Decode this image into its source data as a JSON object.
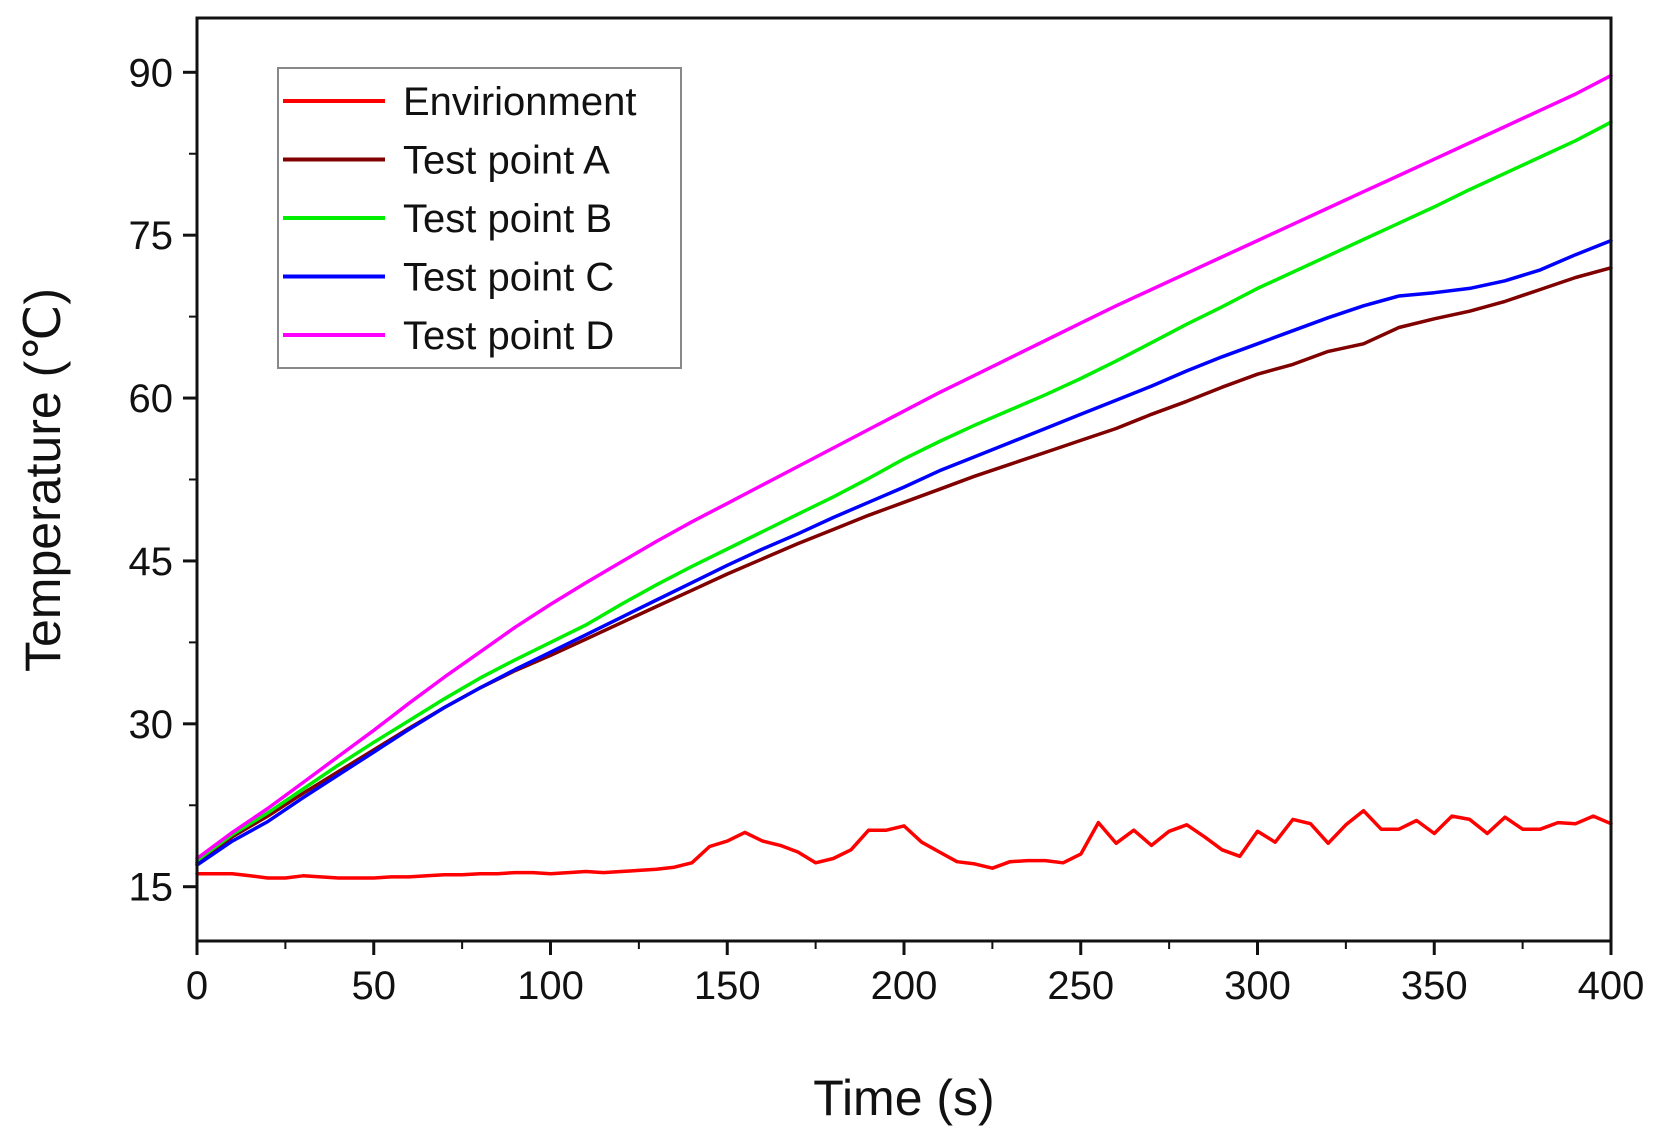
{
  "chart_data": {
    "type": "line",
    "title": "",
    "xlabel": "Time (s)",
    "ylabel": "Temperature (℃)",
    "xlim": [
      0,
      400
    ],
    "ylim": [
      10,
      95
    ],
    "xticks": [
      0,
      50,
      100,
      150,
      200,
      250,
      300,
      350,
      400
    ],
    "yticks": [
      15,
      30,
      45,
      60,
      75,
      90
    ],
    "grid": false,
    "legend_position": "top-left",
    "series": [
      {
        "name": "Envirionment",
        "color": "#ff0000",
        "x": [
          0,
          5,
          10,
          15,
          20,
          25,
          30,
          35,
          40,
          45,
          50,
          55,
          60,
          65,
          70,
          75,
          80,
          85,
          90,
          95,
          100,
          105,
          110,
          115,
          120,
          125,
          130,
          135,
          140,
          145,
          150,
          155,
          160,
          165,
          170,
          175,
          180,
          185,
          190,
          195,
          200,
          205,
          210,
          215,
          220,
          225,
          230,
          235,
          240,
          245,
          250,
          255,
          260,
          265,
          270,
          275,
          280,
          285,
          290,
          295,
          300,
          305,
          310,
          315,
          320,
          325,
          330,
          335,
          340,
          345,
          350,
          355,
          360,
          365,
          370,
          375,
          380,
          385,
          390,
          395,
          400
        ],
        "y": [
          16.2,
          16.2,
          16.2,
          16.0,
          15.8,
          15.8,
          16.0,
          15.9,
          15.8,
          15.8,
          15.8,
          15.9,
          15.9,
          16.0,
          16.1,
          16.1,
          16.2,
          16.2,
          16.3,
          16.3,
          16.2,
          16.3,
          16.4,
          16.3,
          16.4,
          16.5,
          16.6,
          16.8,
          17.2,
          18.7,
          19.2,
          20.0,
          19.2,
          18.8,
          18.2,
          17.2,
          17.6,
          18.4,
          20.2,
          20.2,
          20.6,
          19.1,
          18.2,
          17.3,
          17.1,
          16.7,
          17.3,
          17.4,
          17.4,
          17.2,
          18.0,
          20.9,
          19.0,
          20.2,
          18.8,
          20.1,
          20.7,
          19.6,
          18.4,
          17.8,
          20.1,
          19.1,
          21.2,
          20.8,
          19.0,
          20.7,
          22.0,
          20.3,
          20.3,
          21.1,
          19.9,
          21.5,
          21.2,
          19.9,
          21.4,
          20.3,
          20.3,
          20.9,
          20.8,
          21.5,
          20.8
        ]
      },
      {
        "name": "Test point A",
        "color": "#800000",
        "x": [
          0,
          10,
          20,
          30,
          40,
          50,
          60,
          70,
          80,
          90,
          100,
          110,
          120,
          130,
          140,
          150,
          160,
          170,
          180,
          190,
          200,
          210,
          220,
          230,
          240,
          250,
          260,
          270,
          280,
          290,
          300,
          310,
          320,
          330,
          340,
          350,
          360,
          370,
          380,
          390,
          400
        ],
        "y": [
          17.2,
          19.6,
          21.5,
          23.6,
          25.6,
          27.6,
          29.6,
          31.5,
          33.3,
          34.9,
          36.3,
          37.8,
          39.3,
          40.8,
          42.3,
          43.8,
          45.2,
          46.6,
          47.9,
          49.2,
          50.4,
          51.6,
          52.8,
          53.9,
          55.0,
          56.1,
          57.2,
          58.5,
          59.7,
          61.0,
          62.2,
          63.1,
          64.3,
          65.0,
          66.5,
          67.3,
          68.0,
          68.9,
          70.0,
          71.1,
          72.0
        ]
      },
      {
        "name": "Test point B",
        "color": "#00ee00",
        "x": [
          0,
          10,
          20,
          30,
          40,
          50,
          60,
          70,
          80,
          90,
          100,
          110,
          120,
          130,
          140,
          150,
          160,
          170,
          180,
          190,
          200,
          210,
          220,
          230,
          240,
          250,
          260,
          270,
          280,
          290,
          300,
          310,
          320,
          330,
          340,
          350,
          360,
          370,
          380,
          390,
          400
        ],
        "y": [
          17.4,
          19.8,
          21.8,
          24.0,
          26.2,
          28.3,
          30.3,
          32.3,
          34.2,
          35.9,
          37.5,
          39.1,
          41.0,
          42.8,
          44.5,
          46.1,
          47.7,
          49.3,
          50.9,
          52.6,
          54.4,
          56.0,
          57.5,
          58.9,
          60.3,
          61.8,
          63.4,
          65.1,
          66.8,
          68.4,
          70.1,
          71.6,
          73.1,
          74.6,
          76.1,
          77.6,
          79.2,
          80.7,
          82.2,
          83.7,
          85.4
        ]
      },
      {
        "name": "Test point C",
        "color": "#0000ff",
        "x": [
          0,
          10,
          20,
          30,
          40,
          50,
          60,
          70,
          80,
          90,
          100,
          110,
          120,
          130,
          140,
          150,
          160,
          170,
          180,
          190,
          200,
          210,
          220,
          230,
          240,
          250,
          260,
          270,
          280,
          290,
          300,
          310,
          320,
          330,
          340,
          350,
          360,
          370,
          380,
          390,
          400
        ],
        "y": [
          17.0,
          19.2,
          21.0,
          23.2,
          25.3,
          27.4,
          29.5,
          31.5,
          33.3,
          35.0,
          36.6,
          38.2,
          39.8,
          41.4,
          43.0,
          44.6,
          46.1,
          47.5,
          49.0,
          50.4,
          51.8,
          53.3,
          54.6,
          55.9,
          57.2,
          58.5,
          59.8,
          61.1,
          62.5,
          63.8,
          65.0,
          66.2,
          67.4,
          68.5,
          69.4,
          69.7,
          70.1,
          70.8,
          71.8,
          73.2,
          74.5
        ]
      },
      {
        "name": "Test point D",
        "color": "#ff00ff",
        "x": [
          0,
          10,
          20,
          30,
          40,
          50,
          60,
          70,
          80,
          90,
          100,
          110,
          120,
          130,
          140,
          150,
          160,
          170,
          180,
          190,
          200,
          210,
          220,
          230,
          240,
          250,
          260,
          270,
          280,
          290,
          300,
          310,
          320,
          330,
          340,
          350,
          360,
          370,
          380,
          390,
          400
        ],
        "y": [
          17.6,
          20.0,
          22.2,
          24.6,
          27.0,
          29.4,
          31.9,
          34.3,
          36.6,
          38.9,
          41.0,
          43.0,
          44.9,
          46.8,
          48.6,
          50.3,
          52.0,
          53.7,
          55.4,
          57.1,
          58.8,
          60.5,
          62.1,
          63.7,
          65.3,
          66.9,
          68.5,
          70.0,
          71.5,
          73.0,
          74.5,
          76.0,
          77.5,
          79.0,
          80.5,
          82.0,
          83.5,
          85.0,
          86.5,
          88.0,
          89.7
        ]
      }
    ]
  }
}
